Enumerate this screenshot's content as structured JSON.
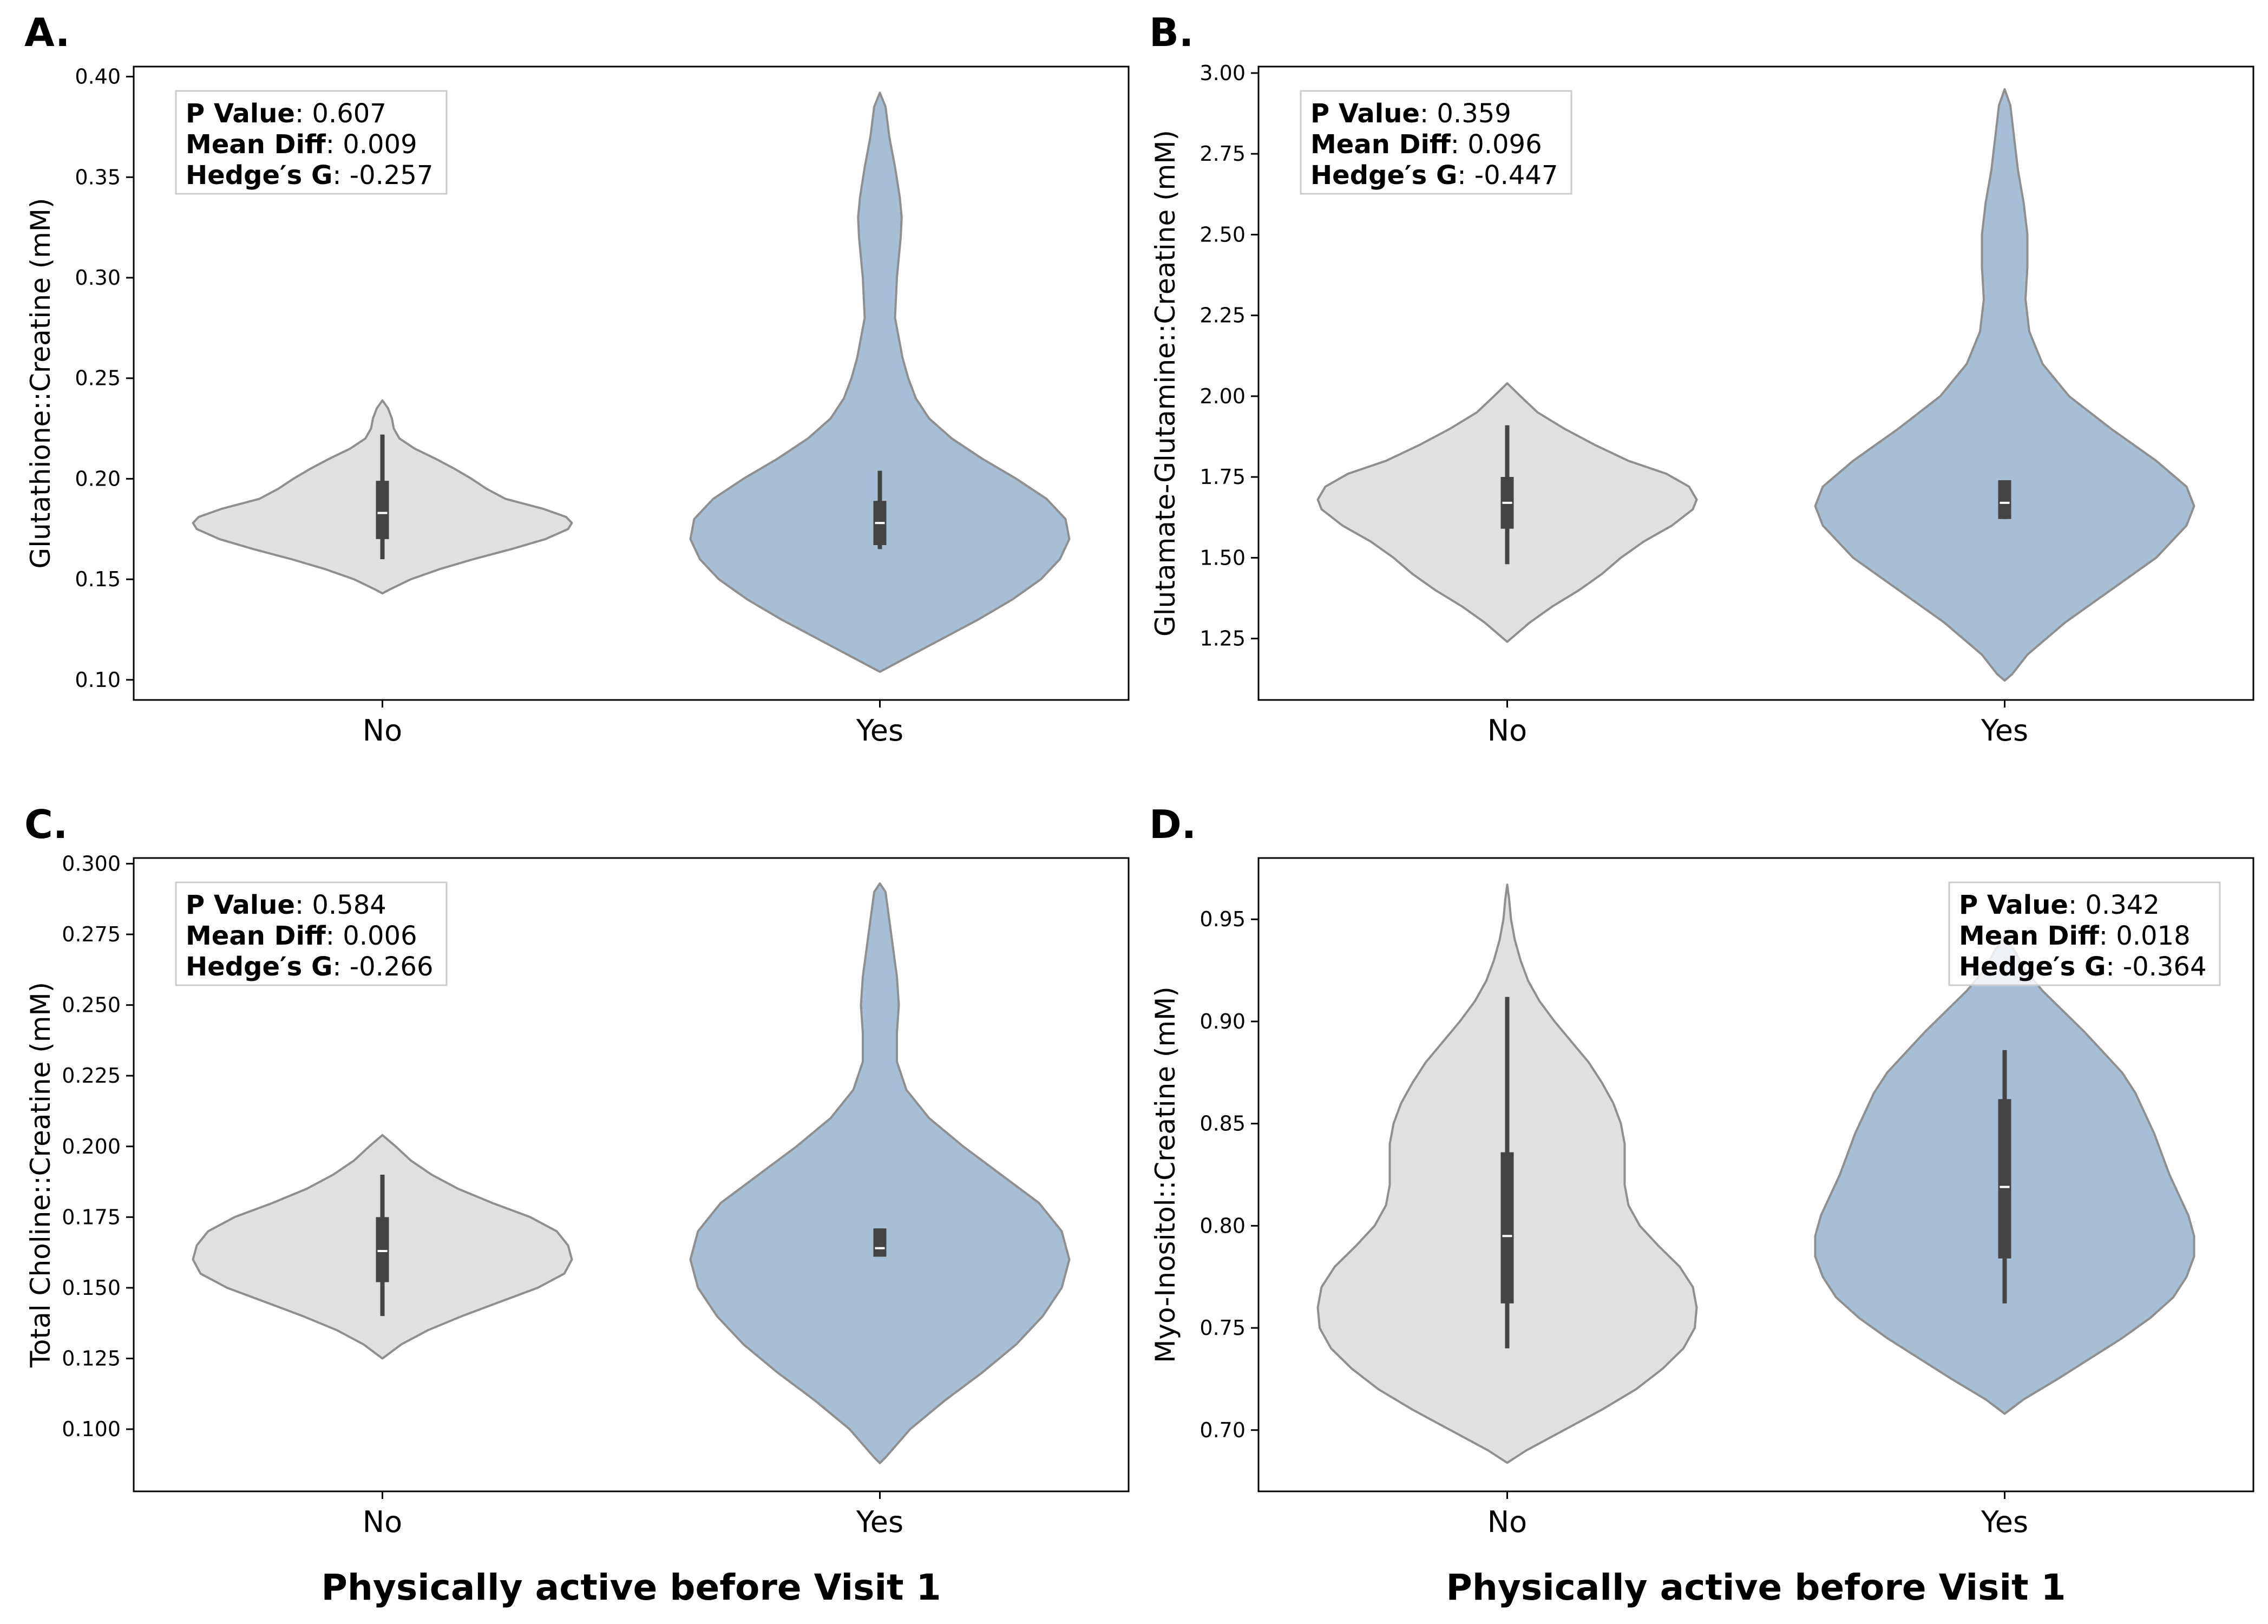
{
  "colors": {
    "no_fill": "#e0e0e0",
    "yes_fill": "#a7bfd4",
    "violin_edge": "#8f8f8f",
    "box": "#444444",
    "median": "#ffffff",
    "stat_box_border": "#cccccc"
  },
  "chart_data": [
    {
      "type": "violin",
      "panel_label": "A.",
      "ylabel": "Glutathione::Creatine (mM)",
      "xlabel": "",
      "categories": [
        "No",
        "Yes"
      ],
      "ylim": [
        0.09,
        0.405
      ],
      "yticks": [
        0.1,
        0.15,
        0.2,
        0.25,
        0.3,
        0.35,
        0.4
      ],
      "ytick_labels": [
        "0.10",
        "0.15",
        "0.20",
        "0.25",
        "0.30",
        "0.35",
        "0.40"
      ],
      "stats": {
        "p_label": "P Value",
        "p_value": ": 0.607",
        "md_label": "Mean Diff",
        "md_value": ": 0.009",
        "g_label": "Hedge′s G",
        "g_value": ": -0.257",
        "position": "top-left"
      },
      "groups": [
        {
          "name": "No",
          "box": {
            "q1": 0.17,
            "median": 0.183,
            "q3": 0.199,
            "whisker_low": 0.16,
            "whisker_high": 0.222
          },
          "density": [
            [
              0.143,
              0.0
            ],
            [
              0.145,
              0.04
            ],
            [
              0.15,
              0.15
            ],
            [
              0.155,
              0.3
            ],
            [
              0.16,
              0.48
            ],
            [
              0.165,
              0.68
            ],
            [
              0.17,
              0.86
            ],
            [
              0.175,
              0.98
            ],
            [
              0.178,
              1.0
            ],
            [
              0.181,
              0.97
            ],
            [
              0.185,
              0.85
            ],
            [
              0.19,
              0.65
            ],
            [
              0.195,
              0.55
            ],
            [
              0.2,
              0.47
            ],
            [
              0.205,
              0.38
            ],
            [
              0.21,
              0.28
            ],
            [
              0.215,
              0.17
            ],
            [
              0.22,
              0.09
            ],
            [
              0.225,
              0.06
            ],
            [
              0.23,
              0.05
            ],
            [
              0.235,
              0.03
            ],
            [
              0.239,
              0.0
            ]
          ]
        },
        {
          "name": "Yes",
          "box": {
            "q1": 0.167,
            "median": 0.178,
            "q3": 0.189,
            "whisker_low": 0.165,
            "whisker_high": 0.204
          },
          "density": [
            [
              0.104,
              0.0
            ],
            [
              0.106,
              0.04
            ],
            [
              0.11,
              0.12
            ],
            [
              0.12,
              0.32
            ],
            [
              0.13,
              0.52
            ],
            [
              0.14,
              0.7
            ],
            [
              0.15,
              0.85
            ],
            [
              0.16,
              0.95
            ],
            [
              0.17,
              1.0
            ],
            [
              0.18,
              0.98
            ],
            [
              0.19,
              0.88
            ],
            [
              0.2,
              0.72
            ],
            [
              0.21,
              0.54
            ],
            [
              0.22,
              0.38
            ],
            [
              0.23,
              0.26
            ],
            [
              0.24,
              0.19
            ],
            [
              0.25,
              0.15
            ],
            [
              0.26,
              0.12
            ],
            [
              0.27,
              0.1
            ],
            [
              0.28,
              0.08
            ],
            [
              0.3,
              0.09
            ],
            [
              0.32,
              0.11
            ],
            [
              0.33,
              0.115
            ],
            [
              0.34,
              0.105
            ],
            [
              0.355,
              0.08
            ],
            [
              0.37,
              0.05
            ],
            [
              0.385,
              0.03
            ],
            [
              0.392,
              0.0
            ]
          ]
        }
      ]
    },
    {
      "type": "violin",
      "panel_label": "B.",
      "ylabel": "Glutamate-Glutamine::Creatine (mM)",
      "xlabel": "",
      "categories": [
        "No",
        "Yes"
      ],
      "ylim": [
        1.06,
        3.02
      ],
      "yticks": [
        1.25,
        1.5,
        1.75,
        2.0,
        2.25,
        2.5,
        2.75,
        3.0
      ],
      "ytick_labels": [
        "1.25",
        "1.50",
        "1.75",
        "2.00",
        "2.25",
        "2.50",
        "2.75",
        "3.00"
      ],
      "stats": {
        "p_label": "P Value",
        "p_value": ": 0.359",
        "md_label": "Mean Diff",
        "md_value": ": 0.096",
        "g_label": "Hedge′s G",
        "g_value": ": -0.447",
        "position": "top-left"
      },
      "groups": [
        {
          "name": "No",
          "box": {
            "q1": 1.59,
            "median": 1.67,
            "q3": 1.75,
            "whisker_low": 1.48,
            "whisker_high": 1.91
          },
          "density": [
            [
              1.24,
              0.0
            ],
            [
              1.26,
              0.04
            ],
            [
              1.3,
              0.12
            ],
            [
              1.35,
              0.24
            ],
            [
              1.4,
              0.38
            ],
            [
              1.45,
              0.5
            ],
            [
              1.5,
              0.6
            ],
            [
              1.55,
              0.72
            ],
            [
              1.6,
              0.87
            ],
            [
              1.65,
              0.98
            ],
            [
              1.68,
              1.0
            ],
            [
              1.72,
              0.96
            ],
            [
              1.76,
              0.84
            ],
            [
              1.8,
              0.64
            ],
            [
              1.85,
              0.46
            ],
            [
              1.9,
              0.3
            ],
            [
              1.95,
              0.16
            ],
            [
              2.0,
              0.07
            ],
            [
              2.04,
              0.0
            ]
          ]
        },
        {
          "name": "Yes",
          "box": {
            "q1": 1.62,
            "median": 1.67,
            "q3": 1.74,
            "whisker_low": 1.62,
            "whisker_high": 1.74
          },
          "density": [
            [
              1.12,
              0.0
            ],
            [
              1.14,
              0.04
            ],
            [
              1.2,
              0.12
            ],
            [
              1.3,
              0.32
            ],
            [
              1.4,
              0.56
            ],
            [
              1.5,
              0.8
            ],
            [
              1.6,
              0.96
            ],
            [
              1.66,
              1.0
            ],
            [
              1.72,
              0.96
            ],
            [
              1.8,
              0.8
            ],
            [
              1.9,
              0.56
            ],
            [
              2.0,
              0.34
            ],
            [
              2.1,
              0.2
            ],
            [
              2.2,
              0.13
            ],
            [
              2.3,
              0.11
            ],
            [
              2.4,
              0.12
            ],
            [
              2.5,
              0.12
            ],
            [
              2.6,
              0.1
            ],
            [
              2.7,
              0.07
            ],
            [
              2.8,
              0.05
            ],
            [
              2.9,
              0.03
            ],
            [
              2.95,
              0.0
            ]
          ]
        }
      ]
    },
    {
      "type": "violin",
      "panel_label": "C.",
      "ylabel": "Total Choline::Creatine (mM)",
      "xlabel": "Physically active before Visit 1",
      "categories": [
        "No",
        "Yes"
      ],
      "ylim": [
        0.078,
        0.302
      ],
      "yticks": [
        0.1,
        0.125,
        0.15,
        0.175,
        0.2,
        0.225,
        0.25,
        0.275,
        0.3
      ],
      "ytick_labels": [
        "0.100",
        "0.125",
        "0.150",
        "0.175",
        "0.200",
        "0.225",
        "0.250",
        "0.275",
        "0.300"
      ],
      "stats": {
        "p_label": "P Value",
        "p_value": ": 0.584",
        "md_label": "Mean Diff",
        "md_value": ": 0.006",
        "g_label": "Hedge′s G",
        "g_value": ": -0.266",
        "position": "top-left"
      },
      "groups": [
        {
          "name": "No",
          "box": {
            "q1": 0.152,
            "median": 0.163,
            "q3": 0.175,
            "whisker_low": 0.14,
            "whisker_high": 0.19
          },
          "density": [
            [
              0.125,
              0.0
            ],
            [
              0.127,
              0.04
            ],
            [
              0.13,
              0.1
            ],
            [
              0.135,
              0.24
            ],
            [
              0.14,
              0.42
            ],
            [
              0.145,
              0.62
            ],
            [
              0.15,
              0.82
            ],
            [
              0.155,
              0.96
            ],
            [
              0.16,
              1.0
            ],
            [
              0.165,
              0.98
            ],
            [
              0.17,
              0.92
            ],
            [
              0.175,
              0.78
            ],
            [
              0.18,
              0.58
            ],
            [
              0.185,
              0.4
            ],
            [
              0.19,
              0.26
            ],
            [
              0.195,
              0.15
            ],
            [
              0.2,
              0.07
            ],
            [
              0.204,
              0.0
            ]
          ]
        },
        {
          "name": "Yes",
          "box": {
            "q1": 0.161,
            "median": 0.164,
            "q3": 0.171,
            "whisker_low": 0.161,
            "whisker_high": 0.171
          },
          "density": [
            [
              0.088,
              0.0
            ],
            [
              0.09,
              0.03
            ],
            [
              0.1,
              0.16
            ],
            [
              0.11,
              0.34
            ],
            [
              0.12,
              0.54
            ],
            [
              0.13,
              0.72
            ],
            [
              0.14,
              0.86
            ],
            [
              0.15,
              0.96
            ],
            [
              0.16,
              1.0
            ],
            [
              0.17,
              0.96
            ],
            [
              0.18,
              0.84
            ],
            [
              0.19,
              0.64
            ],
            [
              0.2,
              0.44
            ],
            [
              0.21,
              0.26
            ],
            [
              0.22,
              0.14
            ],
            [
              0.23,
              0.09
            ],
            [
              0.24,
              0.09
            ],
            [
              0.25,
              0.1
            ],
            [
              0.26,
              0.09
            ],
            [
              0.27,
              0.07
            ],
            [
              0.28,
              0.05
            ],
            [
              0.29,
              0.03
            ],
            [
              0.293,
              0.0
            ]
          ]
        }
      ]
    },
    {
      "type": "violin",
      "panel_label": "D.",
      "ylabel": "Myo-Inositol::Creatine (mM)",
      "xlabel": "Physically active before Visit 1",
      "categories": [
        "No",
        "Yes"
      ],
      "ylim": [
        0.67,
        0.98
      ],
      "yticks": [
        0.7,
        0.75,
        0.8,
        0.85,
        0.9,
        0.95
      ],
      "ytick_labels": [
        "0.70",
        "0.75",
        "0.80",
        "0.85",
        "0.90",
        "0.95"
      ],
      "stats": {
        "p_label": "P Value",
        "p_value": ": 0.342",
        "md_label": "Mean Diff",
        "md_value": ": 0.018",
        "g_label": "Hedge′s G",
        "g_value": ": -0.364",
        "position": "top-right"
      },
      "groups": [
        {
          "name": "No",
          "box": {
            "q1": 0.762,
            "median": 0.795,
            "q3": 0.836,
            "whisker_low": 0.74,
            "whisker_high": 0.912
          },
          "density": [
            [
              0.684,
              0.0
            ],
            [
              0.69,
              0.1
            ],
            [
              0.7,
              0.3
            ],
            [
              0.71,
              0.5
            ],
            [
              0.72,
              0.68
            ],
            [
              0.73,
              0.82
            ],
            [
              0.74,
              0.93
            ],
            [
              0.75,
              0.99
            ],
            [
              0.76,
              1.0
            ],
            [
              0.77,
              0.98
            ],
            [
              0.78,
              0.91
            ],
            [
              0.79,
              0.8
            ],
            [
              0.8,
              0.7
            ],
            [
              0.81,
              0.64
            ],
            [
              0.82,
              0.62
            ],
            [
              0.83,
              0.62
            ],
            [
              0.84,
              0.62
            ],
            [
              0.85,
              0.6
            ],
            [
              0.86,
              0.56
            ],
            [
              0.87,
              0.5
            ],
            [
              0.88,
              0.43
            ],
            [
              0.89,
              0.34
            ],
            [
              0.9,
              0.25
            ],
            [
              0.91,
              0.17
            ],
            [
              0.92,
              0.11
            ],
            [
              0.93,
              0.07
            ],
            [
              0.94,
              0.04
            ],
            [
              0.95,
              0.02
            ],
            [
              0.96,
              0.01
            ],
            [
              0.967,
              0.0
            ]
          ]
        },
        {
          "name": "Yes",
          "box": {
            "q1": 0.784,
            "median": 0.819,
            "q3": 0.862,
            "whisker_low": 0.762,
            "whisker_high": 0.886
          },
          "density": [
            [
              0.708,
              0.0
            ],
            [
              0.715,
              0.1
            ],
            [
              0.725,
              0.28
            ],
            [
              0.735,
              0.45
            ],
            [
              0.745,
              0.62
            ],
            [
              0.755,
              0.77
            ],
            [
              0.765,
              0.89
            ],
            [
              0.775,
              0.96
            ],
            [
              0.785,
              1.0
            ],
            [
              0.795,
              1.0
            ],
            [
              0.805,
              0.97
            ],
            [
              0.815,
              0.92
            ],
            [
              0.825,
              0.87
            ],
            [
              0.835,
              0.83
            ],
            [
              0.845,
              0.79
            ],
            [
              0.855,
              0.74
            ],
            [
              0.865,
              0.69
            ],
            [
              0.875,
              0.62
            ],
            [
              0.885,
              0.52
            ],
            [
              0.895,
              0.42
            ],
            [
              0.905,
              0.31
            ],
            [
              0.915,
              0.2
            ],
            [
              0.925,
              0.11
            ],
            [
              0.935,
              0.05
            ],
            [
              0.942,
              0.0
            ]
          ]
        }
      ]
    }
  ]
}
